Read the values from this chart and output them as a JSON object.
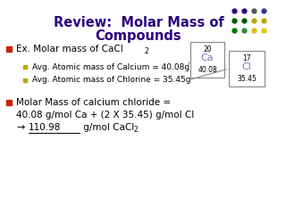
{
  "title_line1": "Review:  Molar Mass of",
  "title_line2": "Compounds",
  "title_color": "#2b0080",
  "title_fontsize": 10.5,
  "bg_color": "#ffffff",
  "bullet1_text": "Ex. Molar mass of CaCl",
  "bullet1_sub": "2",
  "sub_bullet1": "Avg. Atomic mass of Calcium = 40.08g",
  "sub_bullet2": "Avg. Atomic mass of Chlorine = 35.45g",
  "bullet2_line1": "Molar Mass of calcium chloride =",
  "bullet2_line2": "40.08 g/mol Ca + (2 X 35.45) g/mol Cl",
  "bullet2_line3_val": "110.98",
  "bullet2_line3_end": " g/mol CaCl",
  "bullet2_line3_sub": "2",
  "ca_box": {
    "atomic_num": "20",
    "symbol": "Ca",
    "mass": "40.08"
  },
  "cl_box": {
    "atomic_num": "17",
    "symbol": "Cl",
    "mass": "35.45"
  },
  "element_symbol_color": "#7777bb",
  "bullet_red": "#cc2200",
  "bullet_yellow": "#bbaa00",
  "dot_colors": [
    "#330088",
    "#330088",
    "#555555",
    "#333399",
    "#005500",
    "#005500",
    "#bbaa00",
    "#bbaa00",
    "#007700",
    "#338833",
    "#ddbb00",
    "#ddcc00"
  ]
}
